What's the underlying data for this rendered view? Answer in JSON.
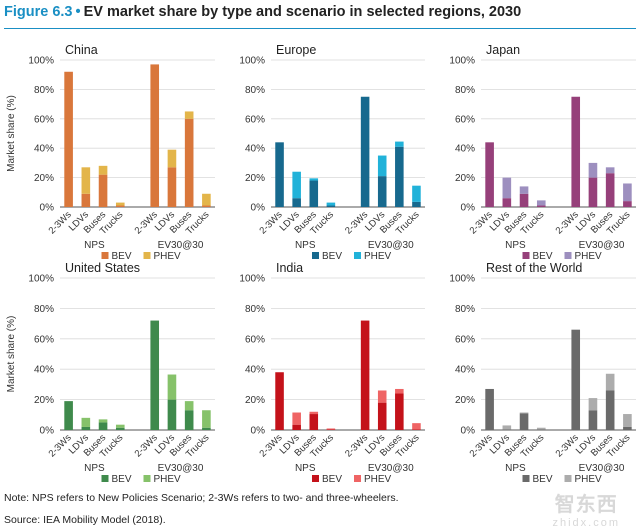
{
  "figure": {
    "number": "Figure 6.3",
    "separator": "•",
    "title": "EV market share by type and scenario in selected regions, 2030",
    "note": "Note: NPS refers to New Policies Scenario; 2-3Ws refers to two- and three-wheelers.",
    "source": "Source: IEA Mobility Model (2018).",
    "watermark": {
      "big": "智东西",
      "small": "zhidx.com"
    }
  },
  "chart_data": [
    {
      "type": "bar",
      "stacked": true,
      "title": "China",
      "ylabel": "Market share (%)",
      "ylim": [
        0,
        100
      ],
      "yticks": [
        "0%",
        "20%",
        "40%",
        "60%",
        "80%",
        "100%"
      ],
      "groups": [
        "NPS",
        "EV30@30"
      ],
      "categories": [
        "2-3Ws",
        "LDVs",
        "Buses",
        "Trucks"
      ],
      "colors": {
        "BEV": "#d9773b",
        "PHEV": "#e3b54a"
      },
      "legend": "bottom",
      "grid": true,
      "series": [
        {
          "name": "BEV",
          "NPS": [
            92,
            9,
            22,
            1
          ],
          "EV30@30": [
            97,
            27,
            60,
            1
          ]
        },
        {
          "name": "PHEV",
          "NPS": [
            0,
            18,
            6,
            2
          ],
          "EV30@30": [
            0,
            12,
            5,
            8
          ]
        }
      ]
    },
    {
      "type": "bar",
      "stacked": true,
      "title": "Europe",
      "ylabel": "",
      "ylim": [
        0,
        100
      ],
      "yticks": [
        "0%",
        "20%",
        "40%",
        "60%",
        "80%",
        "100%"
      ],
      "groups": [
        "NPS",
        "EV30@30"
      ],
      "categories": [
        "2-3Ws",
        "LDVs",
        "Buses",
        "Trucks"
      ],
      "colors": {
        "BEV": "#17698e",
        "PHEV": "#21b2d9"
      },
      "legend": "bottom",
      "grid": true,
      "series": [
        {
          "name": "BEV",
          "NPS": [
            44,
            6,
            18,
            1
          ],
          "EV30@30": [
            75,
            21,
            41,
            3.5
          ]
        },
        {
          "name": "PHEV",
          "NPS": [
            0,
            18,
            1.5,
            2
          ],
          "EV30@30": [
            0,
            14,
            3.5,
            11
          ]
        }
      ]
    },
    {
      "type": "bar",
      "stacked": true,
      "title": "Japan",
      "ylabel": "",
      "ylim": [
        0,
        100
      ],
      "yticks": [
        "0%",
        "20%",
        "40%",
        "60%",
        "80%",
        "100%"
      ],
      "groups": [
        "NPS",
        "EV30@30"
      ],
      "categories": [
        "2-3Ws",
        "LDVs",
        "Buses",
        "Trucks"
      ],
      "colors": {
        "BEV": "#96407a",
        "PHEV": "#9d8fbf"
      },
      "legend": "bottom",
      "grid": true,
      "series": [
        {
          "name": "BEV",
          "NPS": [
            44,
            6,
            9,
            1
          ],
          "EV30@30": [
            75,
            20,
            23,
            4
          ]
        },
        {
          "name": "PHEV",
          "NPS": [
            0,
            14,
            5,
            3.5
          ],
          "EV30@30": [
            0,
            10,
            4,
            12
          ]
        }
      ]
    },
    {
      "type": "bar",
      "stacked": true,
      "title": "United States",
      "ylabel": "Market share (%)",
      "ylim": [
        0,
        100
      ],
      "yticks": [
        "0%",
        "20%",
        "40%",
        "60%",
        "80%",
        "100%"
      ],
      "groups": [
        "NPS",
        "EV30@30"
      ],
      "categories": [
        "2-3Ws",
        "LDVs",
        "Buses",
        "Trucks"
      ],
      "colors": {
        "BEV": "#3f8a4c",
        "PHEV": "#86c26a"
      },
      "legend": "bottom",
      "grid": true,
      "series": [
        {
          "name": "BEV",
          "NPS": [
            19,
            2,
            5,
            1.5
          ],
          "EV30@30": [
            72,
            20,
            13,
            1.5
          ]
        },
        {
          "name": "PHEV",
          "NPS": [
            0,
            6,
            2,
            2
          ],
          "EV30@30": [
            0,
            16.5,
            6,
            11.5
          ]
        }
      ]
    },
    {
      "type": "bar",
      "stacked": true,
      "title": "India",
      "ylabel": "",
      "ylim": [
        0,
        100
      ],
      "yticks": [
        "0%",
        "20%",
        "40%",
        "60%",
        "80%",
        "100%"
      ],
      "groups": [
        "NPS",
        "EV30@30"
      ],
      "categories": [
        "2-3Ws",
        "LDVs",
        "Buses",
        "Trucks"
      ],
      "colors": {
        "BEV": "#c4121a",
        "PHEV": "#ef6464"
      },
      "legend": "bottom",
      "grid": true,
      "series": [
        {
          "name": "BEV",
          "NPS": [
            38,
            3.5,
            10.5,
            0.5
          ],
          "EV30@30": [
            72,
            18,
            24,
            0.5
          ]
        },
        {
          "name": "PHEV",
          "NPS": [
            0,
            8,
            1.5,
            0.5
          ],
          "EV30@30": [
            0,
            8,
            3,
            4
          ]
        }
      ]
    },
    {
      "type": "bar",
      "stacked": true,
      "title": "Rest of the World",
      "ylabel": "",
      "ylim": [
        0,
        100
      ],
      "yticks": [
        "0%",
        "20%",
        "40%",
        "60%",
        "80%",
        "100%"
      ],
      "groups": [
        "NPS",
        "EV30@30"
      ],
      "categories": [
        "2-3Ws",
        "LDVs",
        "Buses",
        "Trucks"
      ],
      "colors": {
        "BEV": "#6a6a6a",
        "PHEV": "#acacac"
      },
      "legend": "bottom",
      "grid": true,
      "series": [
        {
          "name": "BEV",
          "NPS": [
            27,
            0.5,
            11,
            0.5
          ],
          "EV30@30": [
            66,
            13,
            26,
            2
          ]
        },
        {
          "name": "PHEV",
          "NPS": [
            0,
            2.5,
            0.5,
            1
          ],
          "EV30@30": [
            0,
            8,
            11,
            8.5
          ]
        }
      ]
    }
  ]
}
